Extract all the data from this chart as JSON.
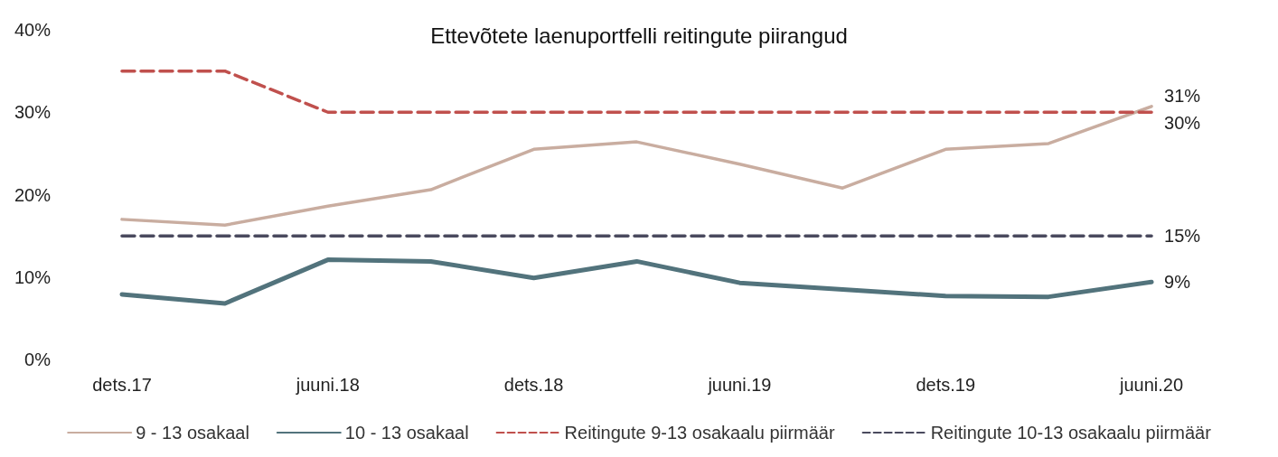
{
  "chart_data": {
    "type": "line",
    "title": "Ettevõtete laenuportfelli reitingute piirangud",
    "categories": [
      "dets.17",
      null,
      "juuni.18",
      null,
      "dets.18",
      null,
      "juuni.19",
      null,
      "dets.19",
      null,
      "juuni.20"
    ],
    "series": [
      {
        "name": "9 - 13 osakaal",
        "color": "#c9ada0",
        "line_style": "solid",
        "values": [
          17.0,
          16.3,
          18.6,
          20.6,
          25.5,
          26.4,
          23.7,
          20.8,
          25.5,
          26.2,
          30.7
        ],
        "value_labels": [
          null,
          null,
          null,
          null,
          null,
          null,
          null,
          null,
          null,
          null,
          "31%"
        ]
      },
      {
        "name": "10 - 13 osakaal",
        "color": "#52737c",
        "line_style": "solid",
        "values": [
          7.9,
          6.8,
          12.1,
          11.9,
          9.9,
          11.9,
          9.3,
          8.5,
          7.7,
          7.6,
          9.4
        ],
        "value_labels": [
          null,
          null,
          null,
          null,
          null,
          null,
          null,
          null,
          null,
          null,
          "9%"
        ]
      },
      {
        "name": "Reitingute 9-13 osakaalu piirmäär",
        "color": "#c0504d",
        "line_style": "dashed",
        "values": [
          35,
          35,
          30,
          30,
          30,
          30,
          30,
          30,
          30,
          30,
          30
        ],
        "value_labels": [
          null,
          null,
          null,
          null,
          null,
          null,
          null,
          null,
          null,
          null,
          "30%"
        ]
      },
      {
        "name": "Reitingute 10-13 osakaalu piirmäär",
        "color": "#4a4a5e",
        "line_style": "dashed",
        "values": [
          15,
          15,
          15,
          15,
          15,
          15,
          15,
          15,
          15,
          15,
          15
        ],
        "value_labels": [
          null,
          null,
          null,
          null,
          null,
          null,
          null,
          null,
          null,
          null,
          "15%"
        ]
      }
    ],
    "ylim": [
      0,
      40
    ],
    "yticks": [
      {
        "value": 0,
        "label": "0%"
      },
      {
        "value": 10,
        "label": "10%"
      },
      {
        "value": 20,
        "label": "20%"
      },
      {
        "value": 30,
        "label": "30%"
      },
      {
        "value": 40,
        "label": "40%"
      }
    ],
    "grid": false,
    "legend": "bottom",
    "marker": "none"
  }
}
